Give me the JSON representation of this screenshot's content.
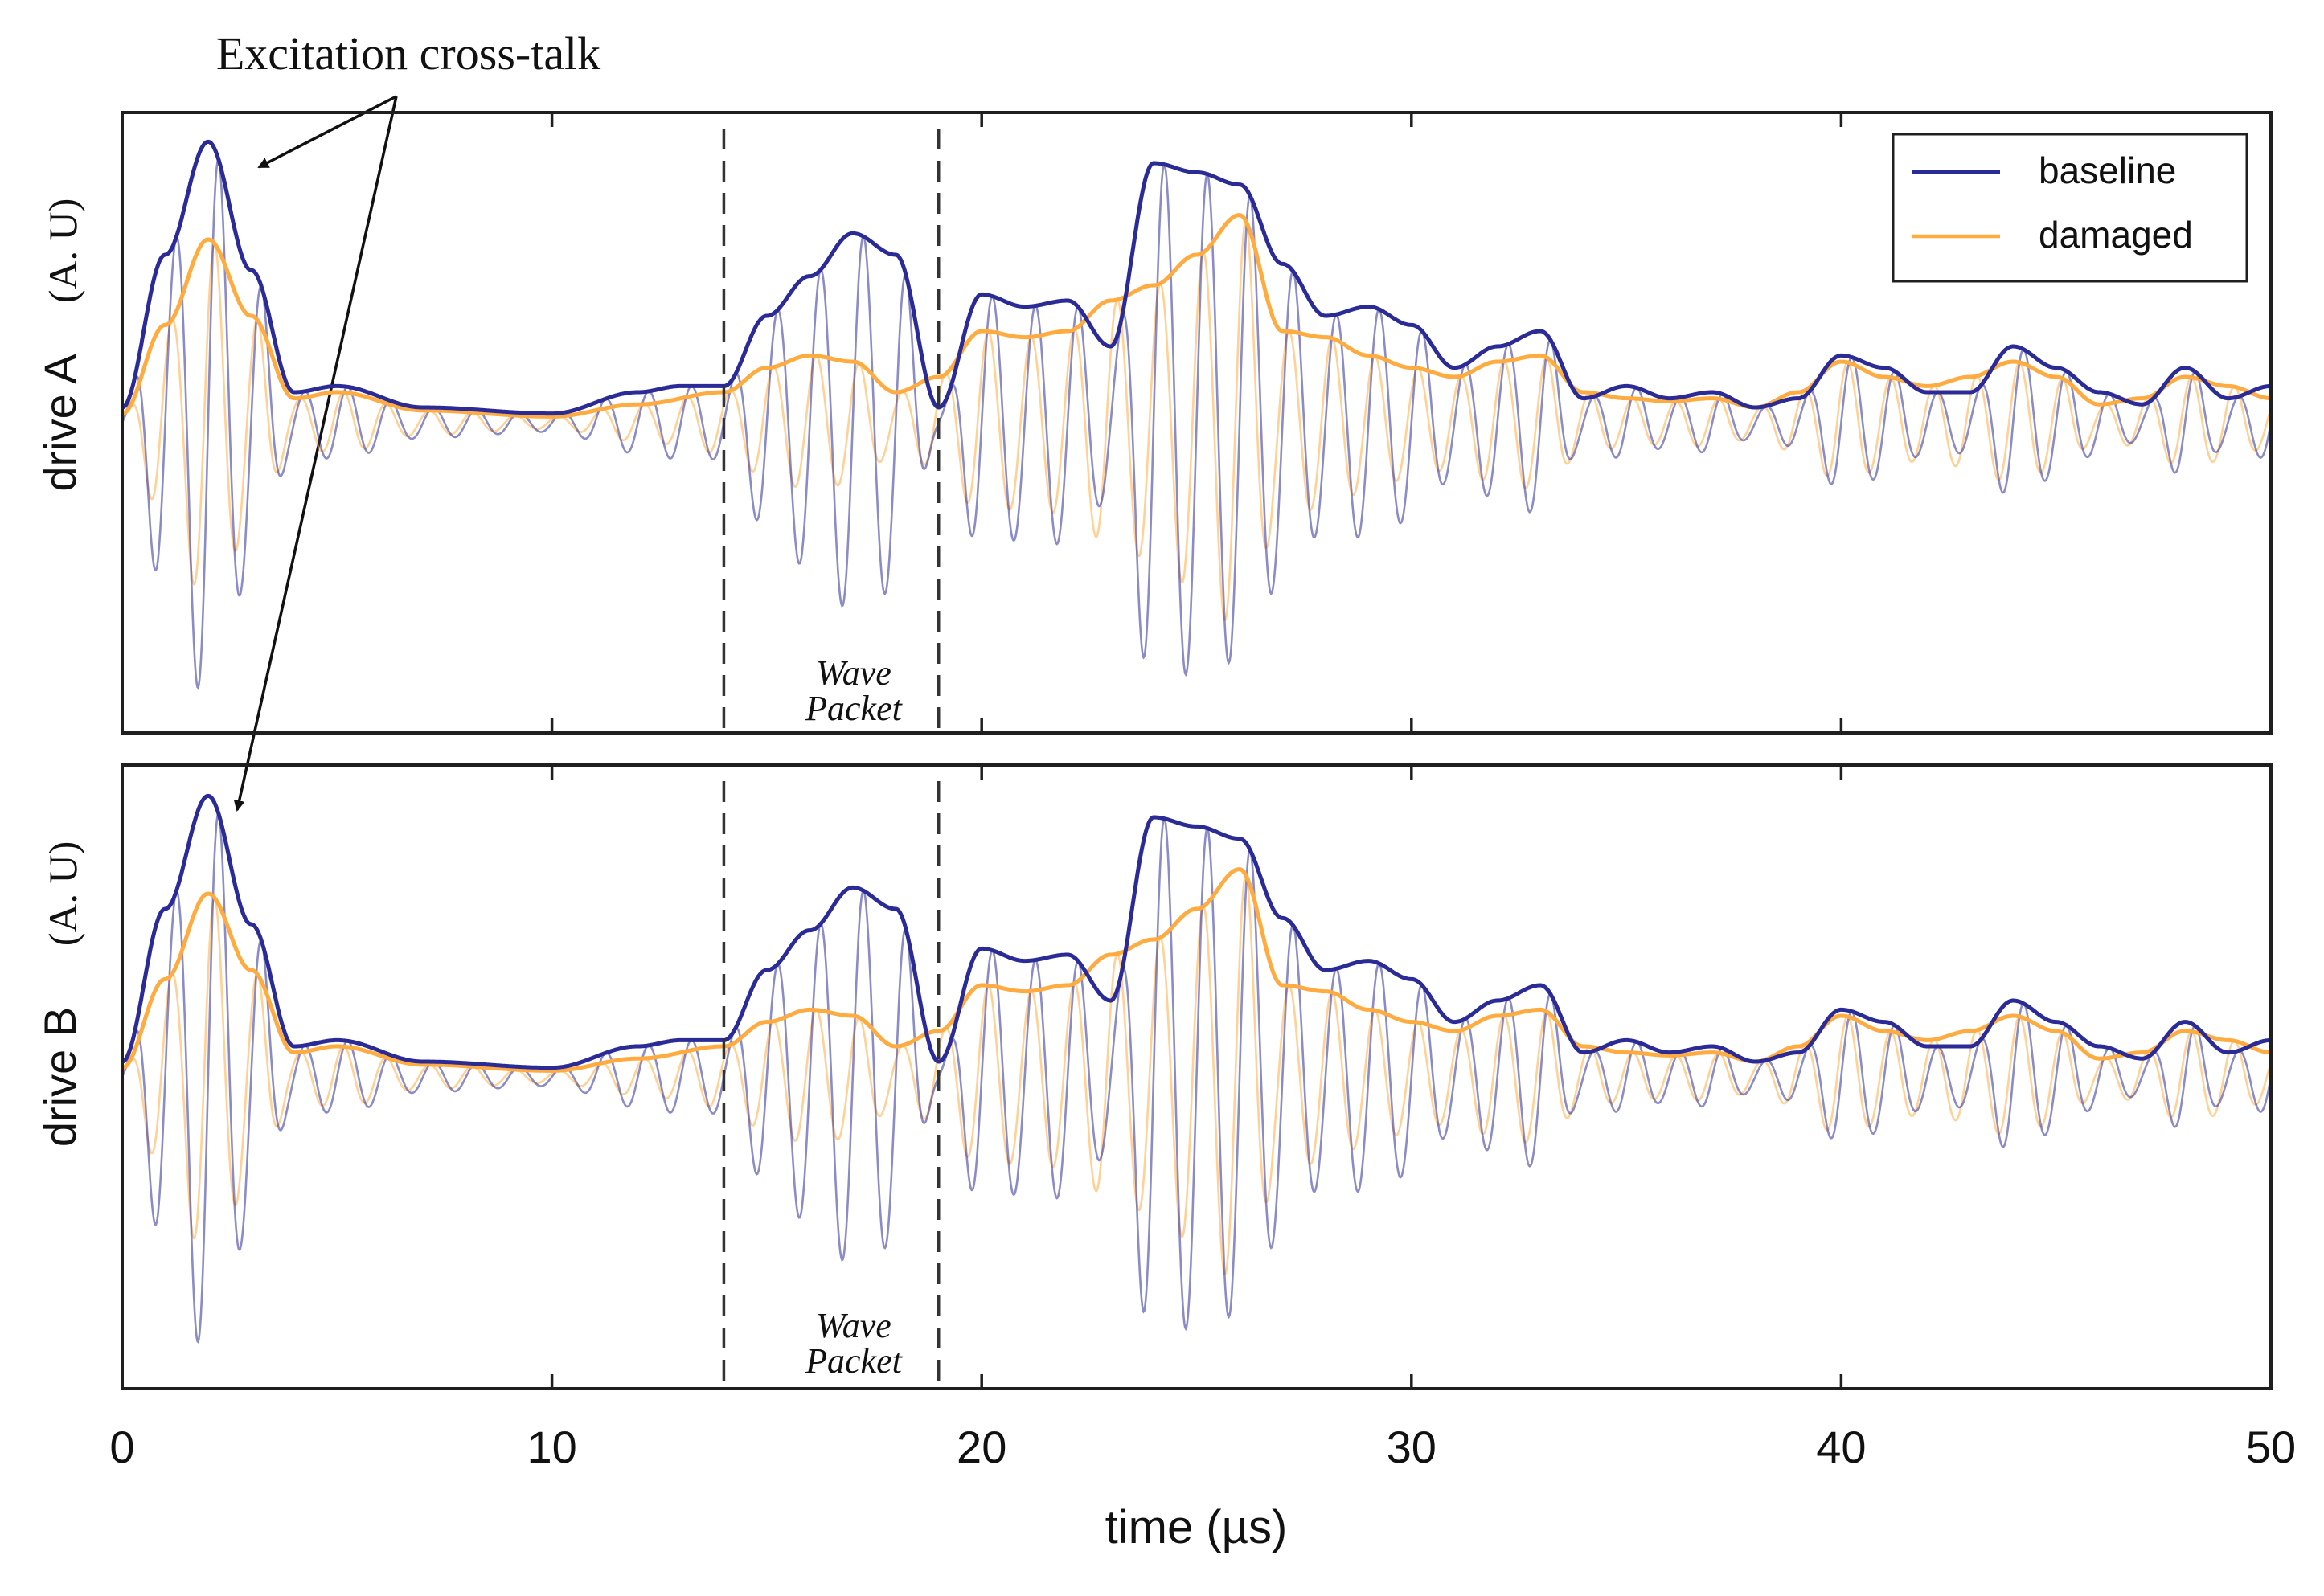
{
  "colors": {
    "baseline": "#2b2b98",
    "damaged": "#ffab40",
    "axis": "#1f1f1f",
    "marker": "#333333"
  },
  "chart_data": {
    "type": "line",
    "title": "",
    "xlabel": "time (µs)",
    "xlim": [
      0,
      50
    ],
    "x_ticks": [
      0,
      10,
      20,
      30,
      40,
      50
    ],
    "x_tick_labels": [
      "0",
      "10",
      "20",
      "30",
      "40",
      "50"
    ],
    "y_units": "arbitrary units",
    "legend": {
      "location": "top-right",
      "entries": [
        "baseline",
        "damaged"
      ]
    },
    "wave_packet_window": [
      14,
      19
    ],
    "wave_packet_label": [
      "Wave",
      "Packet"
    ],
    "annotation": "Excitation cross-talk",
    "panels": [
      {
        "ylabel": "drive A",
        "yunit": "(A. U)",
        "series": [
          {
            "name": "baseline",
            "envelope_t": [
              0,
              1,
              2,
              3,
              4,
              5,
              7,
              10,
              12,
              13,
              14,
              15,
              16,
              17,
              18,
              19,
              20,
              21,
              22,
              23,
              24,
              25,
              26,
              27,
              28,
              29,
              30,
              31,
              32,
              33,
              34,
              35,
              36,
              37,
              38,
              39,
              40,
              41,
              42,
              43,
              44,
              45,
              46,
              47,
              48,
              49,
              50
            ],
            "envelope": [
              0.05,
              0.55,
              0.92,
              0.5,
              0.1,
              0.12,
              0.05,
              0.03,
              0.1,
              0.12,
              0.12,
              0.35,
              0.48,
              0.62,
              0.55,
              0.05,
              0.42,
              0.38,
              0.4,
              0.25,
              0.85,
              0.82,
              0.78,
              0.52,
              0.35,
              0.38,
              0.32,
              0.18,
              0.25,
              0.3,
              0.08,
              0.12,
              0.08,
              0.1,
              0.05,
              0.08,
              0.22,
              0.18,
              0.1,
              0.1,
              0.25,
              0.18,
              0.1,
              0.06,
              0.18,
              0.08,
              0.12
            ]
          },
          {
            "name": "damaged",
            "envelope_t": [
              0,
              1,
              2,
              3,
              4,
              5,
              7,
              10,
              12,
              14,
              15,
              16,
              17,
              18,
              19,
              20,
              21,
              22,
              23,
              24,
              25,
              26,
              27,
              28,
              29,
              30,
              31,
              32,
              33,
              34,
              35,
              36,
              37,
              38,
              39,
              40,
              41,
              42,
              43,
              44,
              45,
              46,
              47,
              48,
              49,
              50
            ],
            "envelope": [
              0.03,
              0.32,
              0.6,
              0.35,
              0.08,
              0.1,
              0.04,
              0.02,
              0.06,
              0.1,
              0.18,
              0.22,
              0.2,
              0.1,
              0.15,
              0.3,
              0.28,
              0.3,
              0.4,
              0.45,
              0.55,
              0.68,
              0.3,
              0.28,
              0.22,
              0.18,
              0.15,
              0.2,
              0.22,
              0.1,
              0.08,
              0.07,
              0.08,
              0.05,
              0.1,
              0.2,
              0.15,
              0.12,
              0.15,
              0.2,
              0.15,
              0.06,
              0.08,
              0.15,
              0.12,
              0.08
            ]
          }
        ]
      },
      {
        "ylabel": "drive B",
        "yunit": "(A. U)",
        "series": [
          {
            "name": "baseline",
            "envelope_t": [
              0,
              1,
              2,
              3,
              4,
              5,
              7,
              10,
              12,
              13,
              14,
              15,
              16,
              17,
              18,
              19,
              20,
              21,
              22,
              23,
              24,
              25,
              26,
              27,
              28,
              29,
              30,
              31,
              32,
              33,
              34,
              35,
              36,
              37,
              38,
              39,
              40,
              41,
              42,
              43,
              44,
              45,
              46,
              47,
              48,
              49,
              50
            ],
            "envelope": [
              0.05,
              0.55,
              0.92,
              0.5,
              0.1,
              0.12,
              0.05,
              0.03,
              0.1,
              0.12,
              0.12,
              0.35,
              0.48,
              0.62,
              0.55,
              0.05,
              0.42,
              0.38,
              0.4,
              0.25,
              0.85,
              0.82,
              0.78,
              0.52,
              0.35,
              0.38,
              0.32,
              0.18,
              0.25,
              0.3,
              0.08,
              0.12,
              0.08,
              0.1,
              0.05,
              0.08,
              0.22,
              0.18,
              0.1,
              0.1,
              0.25,
              0.18,
              0.1,
              0.06,
              0.18,
              0.08,
              0.12
            ]
          },
          {
            "name": "damaged",
            "envelope_t": [
              0,
              1,
              2,
              3,
              4,
              5,
              7,
              10,
              12,
              14,
              15,
              16,
              17,
              18,
              19,
              20,
              21,
              22,
              23,
              24,
              25,
              26,
              27,
              28,
              29,
              30,
              31,
              32,
              33,
              34,
              35,
              36,
              37,
              38,
              39,
              40,
              41,
              42,
              43,
              44,
              45,
              46,
              47,
              48,
              49,
              50
            ],
            "envelope": [
              0.03,
              0.32,
              0.6,
              0.35,
              0.08,
              0.1,
              0.04,
              0.02,
              0.06,
              0.1,
              0.18,
              0.22,
              0.2,
              0.1,
              0.15,
              0.3,
              0.28,
              0.3,
              0.4,
              0.45,
              0.55,
              0.68,
              0.3,
              0.28,
              0.22,
              0.18,
              0.15,
              0.2,
              0.22,
              0.1,
              0.08,
              0.07,
              0.08,
              0.05,
              0.1,
              0.2,
              0.15,
              0.12,
              0.15,
              0.2,
              0.15,
              0.06,
              0.08,
              0.15,
              0.12,
              0.08
            ]
          }
        ]
      }
    ],
    "carrier_frequency_MHz": 1.0
  }
}
